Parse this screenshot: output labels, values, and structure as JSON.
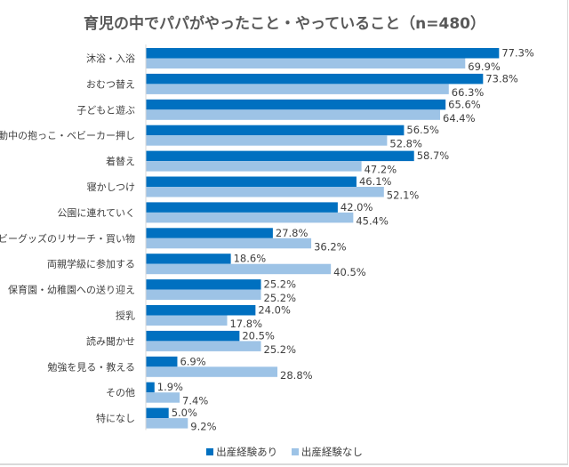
{
  "chart_data": {
    "type": "bar",
    "orientation": "horizontal",
    "title": "育児の中でパパがやったこと・やっていること（n=480）",
    "categories": [
      "沐浴・入浴",
      "おむつ替え",
      "子どもと遊ぶ",
      "移動中の抱っこ・ベビーカー押し",
      "着替え",
      "寝かしつけ",
      "公園に連れていく",
      "ベビーグッズのリサーチ・買い物",
      "両親学級に参加する",
      "保育園・幼稚園への送り迎え",
      "授乳",
      "読み聞かせ",
      "勉強を見る・教える",
      "その他",
      "特になし"
    ],
    "series": [
      {
        "name": "出産経験あり",
        "color": "#0070c0",
        "values": [
          77.3,
          73.8,
          65.6,
          56.5,
          58.7,
          46.1,
          42.0,
          27.8,
          18.6,
          25.2,
          24.0,
          20.5,
          6.9,
          1.9,
          5.0
        ]
      },
      {
        "name": "出産経験なし",
        "color": "#9dc3e6",
        "values": [
          69.9,
          66.3,
          64.4,
          52.8,
          47.2,
          52.1,
          45.4,
          36.2,
          40.5,
          25.2,
          17.8,
          25.2,
          28.8,
          7.4,
          9.2
        ]
      }
    ],
    "value_format": "%",
    "xlim": [
      0,
      100
    ],
    "grid": false,
    "legend": "bottom"
  }
}
